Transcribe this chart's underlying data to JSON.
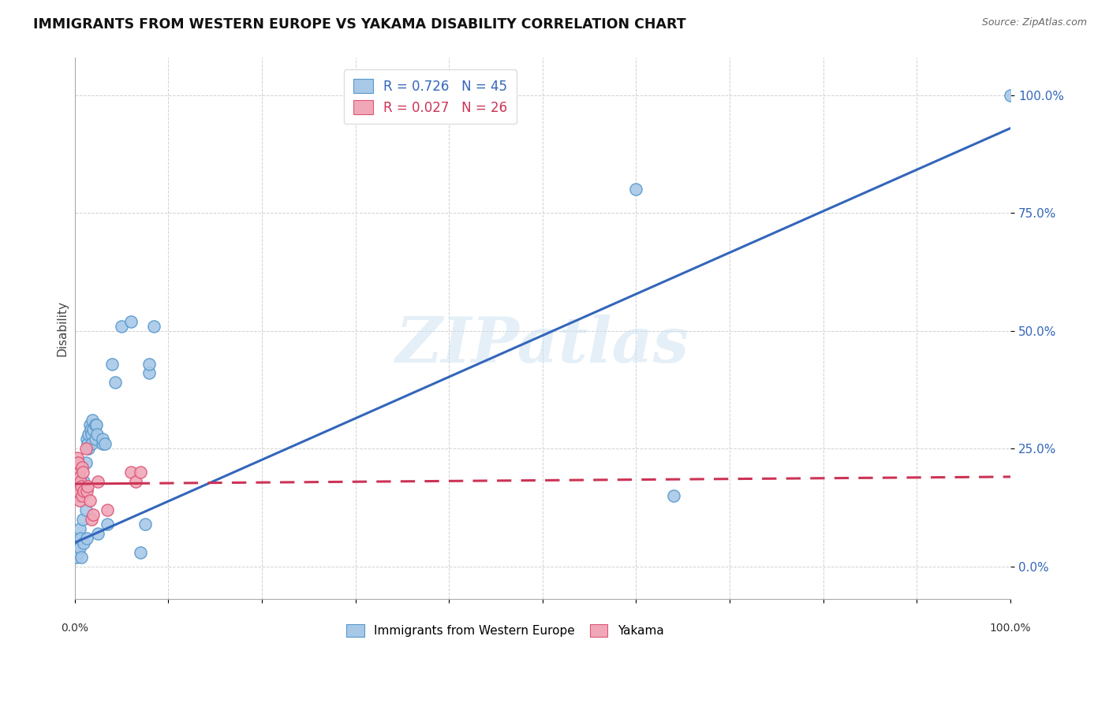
{
  "title": "IMMIGRANTS FROM WESTERN EUROPE VS YAKAMA DISABILITY CORRELATION CHART",
  "source": "Source: ZipAtlas.com",
  "ylabel": "Disability",
  "ytick_labels": [
    "0.0%",
    "25.0%",
    "50.0%",
    "75.0%",
    "100.0%"
  ],
  "ytick_values": [
    0,
    25,
    50,
    75,
    100
  ],
  "legend_blue_r": "0.726",
  "legend_blue_n": "45",
  "legend_pink_r": "0.027",
  "legend_pink_n": "26",
  "blue_color": "#a8c8e8",
  "pink_color": "#f0a8b8",
  "blue_line_color": "#3366bb",
  "pink_line_color": "#cc3355",
  "blue_edge_color": "#5599cc",
  "pink_edge_color": "#dd5577",
  "watermark": "ZIPatlas",
  "blue_scatter": [
    [
      0.2,
      2
    ],
    [
      0.3,
      5
    ],
    [
      0.4,
      3
    ],
    [
      0.5,
      8
    ],
    [
      0.5,
      4
    ],
    [
      0.6,
      6
    ],
    [
      0.7,
      2
    ],
    [
      0.8,
      15
    ],
    [
      0.9,
      10
    ],
    [
      1.0,
      5
    ],
    [
      1.0,
      18
    ],
    [
      1.2,
      12
    ],
    [
      1.2,
      22
    ],
    [
      1.3,
      6
    ],
    [
      1.3,
      27
    ],
    [
      1.4,
      26
    ],
    [
      1.5,
      28
    ],
    [
      1.5,
      25
    ],
    [
      1.6,
      30
    ],
    [
      1.7,
      29
    ],
    [
      1.8,
      28
    ],
    [
      1.8,
      26
    ],
    [
      1.9,
      31
    ],
    [
      2.0,
      29
    ],
    [
      2.2,
      30
    ],
    [
      2.2,
      27
    ],
    [
      2.3,
      30
    ],
    [
      2.4,
      28
    ],
    [
      2.5,
      7
    ],
    [
      3.0,
      26
    ],
    [
      3.0,
      27
    ],
    [
      3.2,
      26
    ],
    [
      3.5,
      9
    ],
    [
      4.0,
      43
    ],
    [
      4.3,
      39
    ],
    [
      5.0,
      51
    ],
    [
      6.0,
      52
    ],
    [
      7.0,
      3
    ],
    [
      7.5,
      9
    ],
    [
      8.0,
      41
    ],
    [
      8.0,
      43
    ],
    [
      8.5,
      51
    ],
    [
      60.0,
      80
    ],
    [
      64.0,
      15
    ],
    [
      100.0,
      100
    ]
  ],
  "pink_scatter": [
    [
      0.1,
      20
    ],
    [
      0.2,
      22
    ],
    [
      0.2,
      18
    ],
    [
      0.3,
      23
    ],
    [
      0.3,
      15
    ],
    [
      0.4,
      22
    ],
    [
      0.4,
      16
    ],
    [
      0.5,
      19
    ],
    [
      0.5,
      14
    ],
    [
      0.6,
      18
    ],
    [
      0.7,
      17
    ],
    [
      0.8,
      21
    ],
    [
      0.8,
      15
    ],
    [
      0.9,
      20
    ],
    [
      1.0,
      16
    ],
    [
      1.2,
      25
    ],
    [
      1.3,
      16
    ],
    [
      1.4,
      17
    ],
    [
      1.6,
      14
    ],
    [
      1.8,
      10
    ],
    [
      2.0,
      11
    ],
    [
      2.5,
      18
    ],
    [
      3.5,
      12
    ],
    [
      6.0,
      20
    ],
    [
      6.5,
      18
    ],
    [
      7.0,
      20
    ]
  ],
  "blue_trendline_x": [
    0,
    100
  ],
  "blue_trendline_y": [
    5,
    93
  ],
  "pink_trendline_x": [
    0,
    100
  ],
  "pink_trendline_y": [
    17.5,
    19.0
  ],
  "pink_solid_end_x": 6.5,
  "xmin": 0,
  "xmax": 100,
  "ymin": -7,
  "ymax": 108
}
